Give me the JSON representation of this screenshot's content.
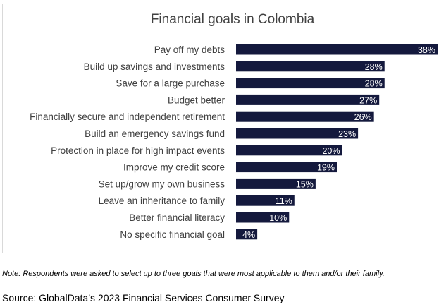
{
  "chart_data": {
    "type": "bar",
    "orientation": "horizontal",
    "title": "Financial goals in Colombia",
    "xlabel": "",
    "ylabel": "",
    "xlim": [
      0,
      38
    ],
    "grid": false,
    "legend": "none",
    "bar_color": "#14193d",
    "label_color": "#ffffff",
    "categories": [
      "Pay off my debts",
      "Build up savings and investments",
      "Save for a large purchase",
      "Budget better",
      "Financially secure and independent retirement",
      "Build an emergency savings fund",
      "Protection in place for high impact events",
      "Improve my credit score",
      "Set up/grow my own business",
      "Leave an inheritance to family",
      "Better financial literacy",
      "No specific financial goal"
    ],
    "values": [
      38,
      28,
      28,
      27,
      26,
      23,
      20,
      19,
      15,
      11,
      10,
      4
    ],
    "data_labels": [
      "38%",
      "28%",
      "28%",
      "27%",
      "26%",
      "23%",
      "20%",
      "19%",
      "15%",
      "11%",
      "10%",
      "4%"
    ]
  },
  "note": "Note: Respondents were asked to select up to three goals that were most applicable to them and/or their family.",
  "source": "Source: GlobalData’s 2023 Financial Services Consumer Survey"
}
